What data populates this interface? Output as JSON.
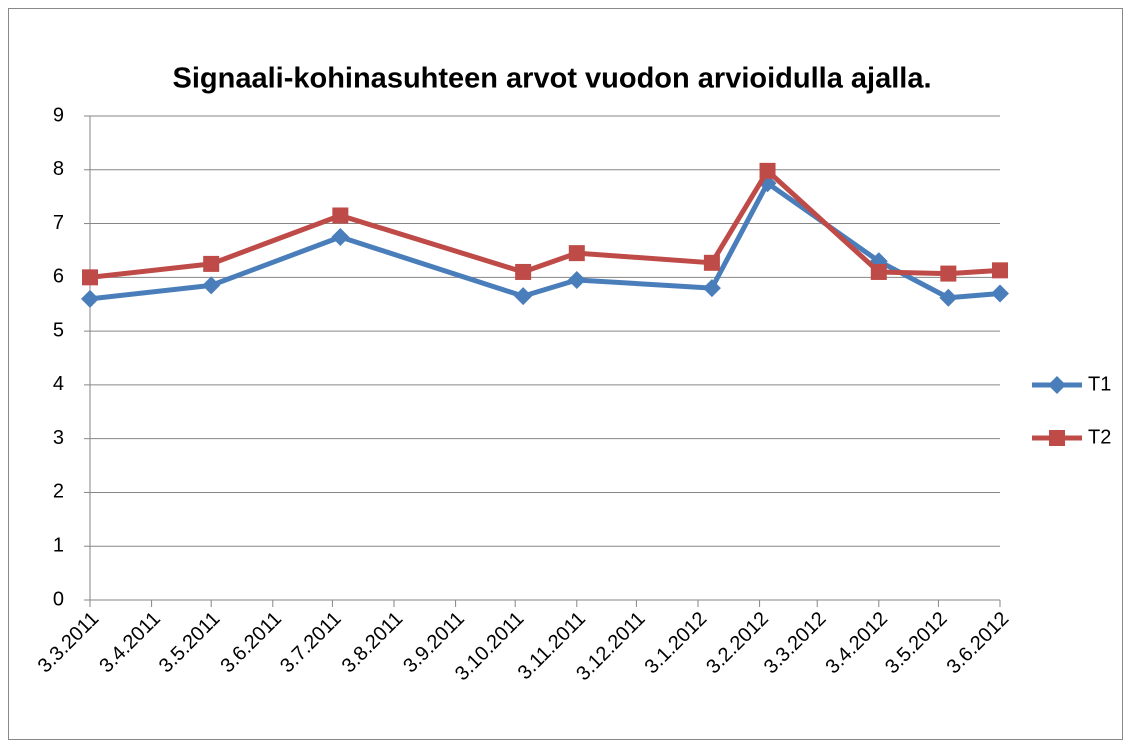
{
  "chart_data": {
    "type": "line",
    "title": "Signaali-kohinasuhteen arvot vuodon arvioidulla ajalla.",
    "x": [
      "3.3.2011",
      "3.5.2011",
      "7.7.2011",
      "7.10.2011",
      "3.11.2011",
      "10.1.2012",
      "7.2.2012",
      "3.4.2012",
      "8.5.2012",
      "3.6.2012"
    ],
    "series": [
      {
        "name": "T1",
        "color": "#4a7ebb",
        "marker": "diamond",
        "values": [
          5.6,
          5.85,
          6.75,
          5.65,
          5.95,
          5.8,
          7.75,
          6.3,
          5.62,
          5.7
        ]
      },
      {
        "name": "T2",
        "color": "#be4b48",
        "marker": "square",
        "values": [
          6.0,
          6.25,
          7.15,
          6.1,
          6.45,
          6.27,
          7.98,
          6.1,
          6.07,
          6.13
        ]
      }
    ],
    "xlim": [
      "3.3.2011",
      "3.6.2012"
    ],
    "xticks": [
      "3.3.2011",
      "3.4.2011",
      "3.5.2011",
      "3.6.2011",
      "3.7.2011",
      "3.8.2011",
      "3.9.2011",
      "3.10.2011",
      "3.11.2011",
      "3.12.2011",
      "3.1.2012",
      "3.2.2012",
      "3.3.2012",
      "3.4.2012",
      "3.5.2012",
      "3.6.2012"
    ],
    "ylim": [
      0,
      9
    ],
    "yticks": [
      0,
      1,
      2,
      3,
      4,
      5,
      6,
      7,
      8,
      9
    ],
    "grid": true,
    "legend": "right"
  }
}
